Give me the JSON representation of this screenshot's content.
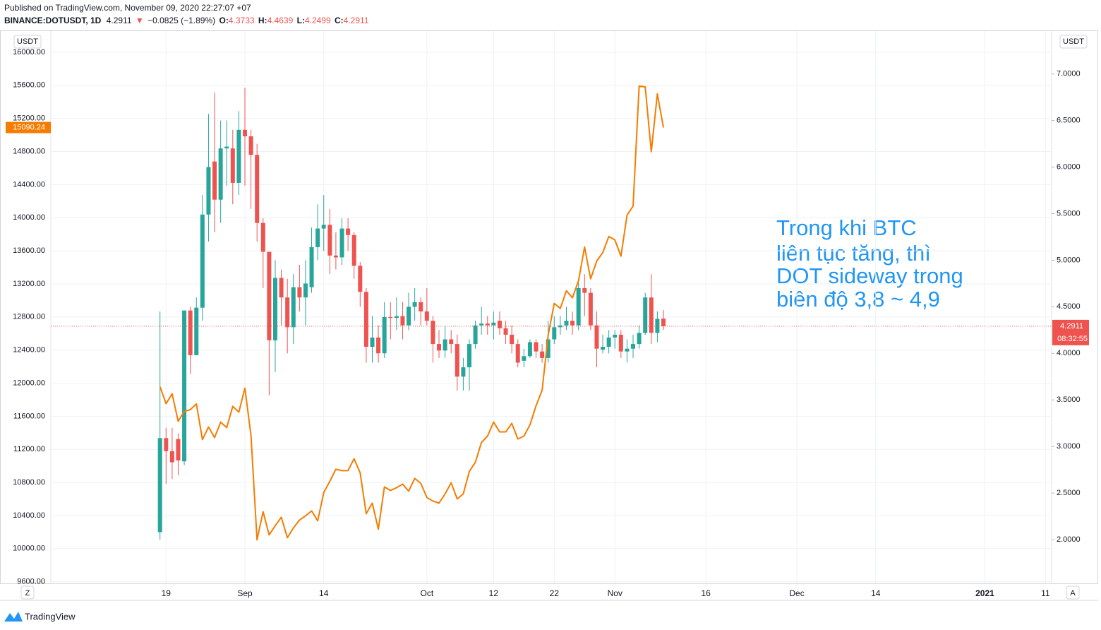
{
  "header": {
    "published": "Published on TradingView.com, November 09, 2020 22:27:07 +07",
    "symbol": "BINANCE:DOTUSDT, 1D",
    "arrow": "▼",
    "change": "−0.0825 (−1.89%)",
    "ohlc_labels": [
      "O:",
      "H:",
      "L:",
      "C:"
    ]
  },
  "chart_data": {
    "type": "candlestick",
    "annotation": [
      "Trong khi BTC",
      "liên tục tăng, thì",
      "DOT sideway trong",
      "biên độ 3,8 ~ 4,9"
    ],
    "currency": "USDT",
    "countdown": "08:32:55",
    "xlim": [
      -18,
      147
    ],
    "xticks": [
      {
        "value": 1,
        "label": "19"
      },
      {
        "value": 14,
        "label": "Sep"
      },
      {
        "value": 27,
        "label": "14"
      },
      {
        "value": 44,
        "label": "Oct"
      },
      {
        "value": 55,
        "label": "12"
      },
      {
        "value": 65,
        "label": "22"
      },
      {
        "value": 75,
        "label": "Nov"
      },
      {
        "value": 90,
        "label": "16"
      },
      {
        "value": 105,
        "label": "Dec"
      },
      {
        "value": 118,
        "label": "14"
      },
      {
        "value": 136,
        "label": "2021"
      },
      {
        "value": 146,
        "label": "11"
      }
    ],
    "ylim": [
      9580,
      16256
    ],
    "yticks": [
      {
        "value": 9600,
        "label": "9600.00"
      },
      {
        "value": 10000,
        "label": "10000.00"
      },
      {
        "value": 10400,
        "label": "10400.00"
      },
      {
        "value": 10800,
        "label": "10800.00"
      },
      {
        "value": 11200,
        "label": "11200.00"
      },
      {
        "value": 11600,
        "label": "11600.00"
      },
      {
        "value": 12000,
        "label": "12000.00"
      },
      {
        "value": 12400,
        "label": "12400.00"
      },
      {
        "value": 12800,
        "label": "12800.00"
      },
      {
        "value": 13200,
        "label": "13200.00"
      },
      {
        "value": 13600,
        "label": "13600.00"
      },
      {
        "value": 14000,
        "label": "14000.00"
      },
      {
        "value": 14400,
        "label": "14400.00"
      },
      {
        "value": 14800,
        "label": "14800.00"
      },
      {
        "value": 15200,
        "label": "15200.00"
      },
      {
        "value": 15600,
        "label": "15600.00"
      },
      {
        "value": 16000,
        "label": "16000.00"
      }
    ],
    "y2lim": [
      1.53,
      7.46
    ],
    "y2ticks": [
      {
        "value": 2,
        "label": "2.0000"
      },
      {
        "value": 2.5,
        "label": "2.5000"
      },
      {
        "value": 3,
        "label": "3.0000"
      },
      {
        "value": 3.5,
        "label": "3.5000"
      },
      {
        "value": 4,
        "label": "4.0000"
      },
      {
        "value": 4.5,
        "label": "4.5000"
      },
      {
        "value": 5,
        "label": "5.0000"
      },
      {
        "value": 5.5,
        "label": "5.5000"
      },
      {
        "value": 6,
        "label": "6.0000"
      },
      {
        "value": 6.5,
        "label": "6.5000"
      },
      {
        "value": 7,
        "label": "7.0000"
      }
    ],
    "grid": true,
    "series": [
      {
        "type": "candlestick",
        "axis": "y2",
        "up_color": "#26a69a",
        "down_color": "#ef5350",
        "open": [
          2.08,
          3.09,
          2.95,
          3.08,
          2.84,
          4.46,
          3.98,
          4.49,
          5.49,
          6.06,
          5.65,
          6.2,
          6.2,
          5.83,
          6.4,
          6.33,
          6.13,
          5.4,
          5.09,
          4.14,
          4.81,
          4.6,
          4.28,
          4.71,
          4.6,
          4.71,
          5.14,
          5.34,
          5.38,
          5.05,
          5.03,
          5.34,
          5.27,
          4.94,
          4.66,
          4.07,
          4.17,
          4.0,
          4.39,
          4.38,
          4.4,
          4.3,
          4.5,
          4.55,
          4.45,
          4.35,
          4.1,
          4.03,
          4.15,
          4.1,
          3.75,
          3.85,
          4.1,
          4.3,
          4.32,
          4.3,
          4.35,
          4.27,
          4.2,
          4.1,
          3.92,
          3.97,
          4.12,
          4.02,
          3.95,
          4.15,
          4.28,
          4.3,
          4.35,
          4.3,
          4.7,
          4.65,
          4.3,
          4.04,
          4.07,
          4.17,
          4.2,
          4.02,
          4.05,
          4.1,
          4.22,
          4.6,
          4.22,
          4.3733
        ],
        "high": [
          4.45,
          3.2,
          3.2,
          3.14,
          4.46,
          4.5,
          4.6,
          5.7,
          6.57,
          6.8,
          6.5,
          6.5,
          6.4,
          6.6,
          6.85,
          6.4,
          6.25,
          5.45,
          5.05,
          5.0,
          4.9,
          4.8,
          4.85,
          4.95,
          5.0,
          5.35,
          5.6,
          5.7,
          5.55,
          5.3,
          5.45,
          5.45,
          5.3,
          4.98,
          4.7,
          4.4,
          4.3,
          4.55,
          4.55,
          4.6,
          4.55,
          4.65,
          4.7,
          4.6,
          4.7,
          4.4,
          4.25,
          4.3,
          4.25,
          4.2,
          3.95,
          4.15,
          4.35,
          4.5,
          4.4,
          4.45,
          4.45,
          4.35,
          4.3,
          4.15,
          4.05,
          4.15,
          4.15,
          4.1,
          4.35,
          4.4,
          4.4,
          4.5,
          4.45,
          4.8,
          4.85,
          4.7,
          4.45,
          4.2,
          4.25,
          4.25,
          4.25,
          4.15,
          4.2,
          4.3,
          4.65,
          4.85,
          4.45,
          4.4639
        ],
        "low": [
          2.0,
          2.6,
          2.65,
          2.69,
          2.8,
          3.78,
          3.98,
          4.35,
          5.2,
          5.3,
          5.4,
          5.8,
          5.6,
          5.7,
          5.8,
          5.55,
          5.2,
          4.7,
          3.55,
          3.8,
          4.3,
          4.0,
          4.1,
          4.45,
          4.3,
          4.65,
          5.0,
          5.1,
          4.85,
          4.9,
          4.95,
          5.1,
          4.8,
          4.5,
          3.9,
          3.9,
          3.9,
          3.95,
          4.15,
          4.25,
          4.15,
          4.25,
          4.35,
          4.3,
          4.3,
          3.9,
          3.95,
          3.95,
          4.0,
          3.6,
          3.6,
          3.6,
          4.05,
          4.2,
          4.2,
          4.15,
          4.2,
          4.1,
          4.0,
          3.85,
          3.85,
          3.95,
          3.95,
          3.9,
          3.9,
          4.1,
          4.2,
          4.25,
          4.2,
          4.25,
          4.4,
          4.25,
          3.85,
          4.0,
          4.0,
          4.05,
          3.95,
          3.9,
          3.95,
          4.05,
          4.2,
          4.1,
          4.12,
          4.2499
        ],
        "close": [
          3.09,
          2.95,
          2.83,
          2.85,
          4.46,
          3.98,
          4.49,
          5.49,
          6.0,
          5.65,
          6.2,
          6.22,
          5.83,
          6.4,
          6.33,
          6.13,
          5.4,
          5.09,
          4.14,
          4.81,
          4.6,
          4.28,
          4.71,
          4.6,
          4.75,
          5.14,
          5.34,
          5.38,
          5.05,
          5.03,
          5.34,
          5.27,
          4.94,
          4.66,
          4.07,
          4.17,
          4.0,
          4.39,
          4.38,
          4.4,
          4.3,
          4.5,
          4.55,
          4.45,
          4.35,
          4.1,
          4.03,
          4.15,
          4.1,
          3.75,
          3.85,
          4.1,
          4.3,
          4.32,
          4.3,
          4.33,
          4.27,
          4.2,
          4.1,
          3.9,
          3.97,
          4.12,
          4.02,
          3.95,
          4.15,
          4.28,
          4.3,
          4.35,
          4.3,
          4.7,
          4.65,
          4.3,
          4.05,
          4.07,
          4.17,
          4.2,
          4.02,
          4.05,
          4.1,
          4.22,
          4.6,
          4.22,
          4.37,
          4.2911
        ]
      },
      {
        "type": "line",
        "axis": "y",
        "color": "#f57c00",
        "values": [
          11958,
          11752,
          11872,
          11539,
          11659,
          11680,
          11750,
          11318,
          11470,
          11343,
          11530,
          11463,
          11720,
          11650,
          11940,
          11370,
          10106,
          10447,
          10166,
          10277,
          10380,
          10132,
          10250,
          10345,
          10397,
          10456,
          10336,
          10678,
          10814,
          10960,
          10943,
          10943,
          11087,
          10917,
          10422,
          10550,
          10234,
          10746,
          10703,
          10737,
          10780,
          10695,
          10849,
          10789,
          10618,
          10575,
          10550,
          10661,
          10797,
          10601,
          10661,
          10934,
          11045,
          11284,
          11360,
          11530,
          11411,
          11411,
          11514,
          11326,
          11360,
          11497,
          11727,
          11915,
          12580,
          12964,
          12904,
          13117,
          13032,
          13237,
          13646,
          13262,
          13475,
          13578,
          13774,
          13731,
          13535,
          14030,
          14141,
          15591,
          15582,
          14797,
          15497,
          15090.24
        ]
      }
    ]
  },
  "footer": {
    "brand": "TradingView",
    "left_button": "Z",
    "right_button": "A"
  }
}
